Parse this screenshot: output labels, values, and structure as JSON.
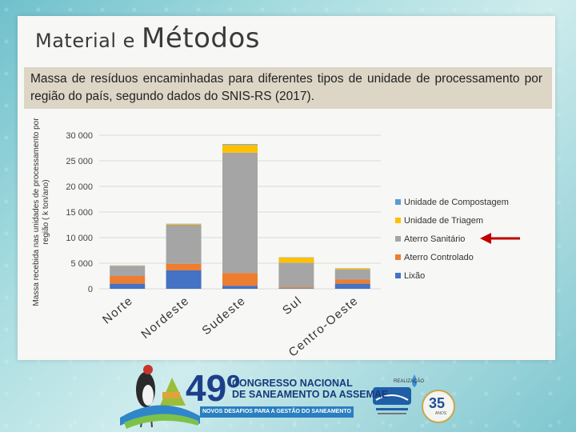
{
  "slide": {
    "title_small": "Material",
    "title_connector": " e ",
    "title_main": "Métodos",
    "subtitle": "Massa de resíduos encaminhadas para diferentes tipos de unidade de processamento por região do país, segundo dados do SNIS-RS (2017)."
  },
  "footer": {
    "congress_number": "49º",
    "congress_line1": "CONGRESSO NACIONAL",
    "congress_line2": "DE SANEAMENTO DA ASSEMAE",
    "congress_banner": "NOVOS DESAFIOS PARA A GESTÃO DO SANEAMENTO",
    "realizacao": "REALIZAÇÃO",
    "anniversary": "35",
    "anniversary_sub": "ANOS"
  },
  "colors": {
    "lixao": "#4472c4",
    "aterro_controlado": "#ed7d31",
    "aterro_sanitario": "#a5a5a5",
    "triagem": "#ffc000",
    "compostagem": "#5b9bd5",
    "arrow": "#c00000"
  },
  "chart_data": {
    "type": "bar",
    "stacked": true,
    "ylabel": "Massa recebida nas unidades de processamento por região ( k ton/ano)",
    "ylim": [
      0,
      30000
    ],
    "yticks": [
      0,
      5000,
      10000,
      15000,
      20000,
      25000,
      30000
    ],
    "ytick_labels": [
      "0",
      "5 000",
      "10 000",
      "15 000",
      "20 000",
      "25 000",
      "30 000"
    ],
    "categories": [
      "Norte",
      "Nordeste",
      "Sudeste",
      "Sul",
      "Centro-Oeste"
    ],
    "series": [
      {
        "name": "Lixão",
        "color": "#4472c4",
        "values": [
          1000,
          3600,
          600,
          100,
          1000
        ]
      },
      {
        "name": "Aterro Controlado",
        "color": "#ed7d31",
        "values": [
          1500,
          1300,
          2500,
          200,
          800
        ]
      },
      {
        "name": "Aterro Sanitário",
        "color": "#a5a5a5",
        "values": [
          2000,
          7600,
          23500,
          4800,
          2000
        ]
      },
      {
        "name": "Unidade de Triagem",
        "color": "#ffc000",
        "values": [
          50,
          150,
          1500,
          1000,
          200
        ]
      },
      {
        "name": "Unidade de Compostagem",
        "color": "#5b9bd5",
        "values": [
          20,
          50,
          150,
          50,
          30
        ]
      }
    ],
    "legend_order": [
      "Unidade de Compostagem",
      "Unidade de Triagem",
      "Aterro Sanitário",
      "Aterro Controlado",
      "Lixão"
    ],
    "legend_placement": "right",
    "highlighted_legend_entry": "Aterro Sanitário",
    "grid": true
  }
}
